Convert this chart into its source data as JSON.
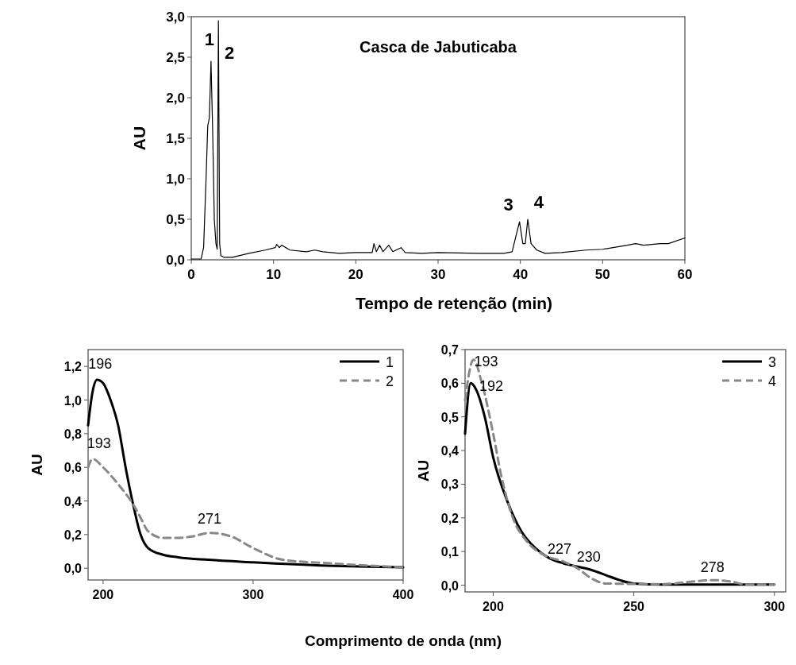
{
  "chart_data": [
    {
      "type": "line",
      "title": "Casca de Jabuticaba",
      "xlabel": "Tempo de retenção (min)",
      "ylabel": "AU",
      "xlim": [
        0,
        60
      ],
      "ylim": [
        0,
        3
      ],
      "xticks": [
        0,
        10,
        20,
        30,
        40,
        50,
        60
      ],
      "yticks": [
        {
          "value": 0,
          "label": "0,0"
        },
        {
          "value": 0.5,
          "label": "0,5"
        },
        {
          "value": 1,
          "label": "1,0"
        },
        {
          "value": 1.5,
          "label": "1,5"
        },
        {
          "value": 2,
          "label": "2,0"
        },
        {
          "value": 2.5,
          "label": "2,5"
        },
        {
          "value": 3,
          "label": "3,0"
        }
      ],
      "series": [
        {
          "color": "#000000",
          "x": [
            0,
            1.2,
            1.5,
            1.8,
            2.0,
            2.2,
            2.4,
            2.6,
            2.8,
            3.0,
            3.15,
            3.3,
            3.45,
            3.6,
            4,
            5,
            7,
            9,
            10.2,
            10.4,
            10.7,
            11,
            12,
            14,
            15,
            16,
            18,
            20,
            22,
            22.2,
            22.5,
            22.9,
            23.3,
            24,
            24.5,
            25.5,
            26,
            28,
            30,
            35,
            38,
            39,
            39.6,
            39.9,
            40.3,
            40.6,
            40.9,
            41.3,
            42,
            43,
            45,
            48,
            50,
            53,
            54,
            55,
            57,
            58,
            60
          ],
          "values": [
            0.01,
            0.01,
            0.15,
            1.0,
            1.65,
            1.75,
            2.45,
            1.6,
            0.5,
            0.2,
            0.13,
            2.95,
            0.2,
            0.05,
            0.03,
            0.03,
            0.08,
            0.12,
            0.15,
            0.19,
            0.15,
            0.18,
            0.12,
            0.1,
            0.12,
            0.1,
            0.08,
            0.09,
            0.09,
            0.2,
            0.1,
            0.18,
            0.1,
            0.18,
            0.1,
            0.15,
            0.09,
            0.08,
            0.09,
            0.08,
            0.08,
            0.1,
            0.35,
            0.47,
            0.2,
            0.2,
            0.5,
            0.2,
            0.12,
            0.08,
            0.09,
            0.12,
            0.13,
            0.18,
            0.2,
            0.18,
            0.2,
            0.2,
            0.27
          ]
        }
      ],
      "annotations": [
        {
          "text": "1",
          "x": 2.4,
          "y": 2.45
        },
        {
          "text": "2",
          "x": 3.3,
          "y": 2.95
        },
        {
          "text": "3",
          "x": 39.9,
          "y": 0.47
        },
        {
          "text": "4",
          "x": 40.9,
          "y": 0.5
        }
      ],
      "grid": false,
      "legend": false,
      "line_style": "solid",
      "marker": "none"
    },
    {
      "type": "line",
      "xlabel": "Comprimento de onda (nm)",
      "ylabel": "AU",
      "xlim": [
        190,
        400
      ],
      "ylim": [
        -0.07,
        1.3
      ],
      "xticks": [
        200,
        300,
        400
      ],
      "yticks": [
        {
          "value": 0,
          "label": "0,0"
        },
        {
          "value": 0.2,
          "label": "0,2"
        },
        {
          "value": 0.4,
          "label": "0,4"
        },
        {
          "value": 0.6,
          "label": "0,6"
        },
        {
          "value": 0.8,
          "label": "0,8"
        },
        {
          "value": 1,
          "label": "1,0"
        },
        {
          "value": 1.2,
          "label": "1,2"
        }
      ],
      "series": [
        {
          "name": "1",
          "color": "#000000",
          "line_style": "solid",
          "x": [
            190,
            193,
            196,
            200,
            205,
            210,
            215,
            220,
            225,
            230,
            240,
            250,
            270,
            300,
            350,
            400
          ],
          "values": [
            0.85,
            1.05,
            1.12,
            1.1,
            1.0,
            0.85,
            0.6,
            0.38,
            0.2,
            0.12,
            0.08,
            0.065,
            0.05,
            0.035,
            0.015,
            0.005
          ]
        },
        {
          "name": "2",
          "color": "#888888",
          "line_style": "dashed",
          "x": [
            190,
            193,
            200,
            210,
            220,
            225,
            230,
            240,
            250,
            260,
            271,
            285,
            300,
            320,
            350,
            400
          ],
          "values": [
            0.6,
            0.65,
            0.6,
            0.5,
            0.38,
            0.3,
            0.22,
            0.18,
            0.18,
            0.19,
            0.21,
            0.19,
            0.12,
            0.05,
            0.03,
            0.005
          ]
        }
      ],
      "annotations": [
        {
          "text": "196",
          "x": 196,
          "y": 1.12
        },
        {
          "text": "193",
          "x": 193,
          "y": 0.65
        },
        {
          "text": "271",
          "x": 271,
          "y": 0.21
        }
      ],
      "grid": false,
      "legend": "top right",
      "marker": "none"
    },
    {
      "type": "line",
      "ylabel": "AU",
      "xlim": [
        190,
        304
      ],
      "ylim": [
        -0.02,
        0.7
      ],
      "xticks": [
        200,
        250,
        300
      ],
      "yticks": [
        {
          "value": 0,
          "label": "0,0"
        },
        {
          "value": 0.1,
          "label": "0,1"
        },
        {
          "value": 0.2,
          "label": "0,2"
        },
        {
          "value": 0.3,
          "label": "0,3"
        },
        {
          "value": 0.4,
          "label": "0,4"
        },
        {
          "value": 0.5,
          "label": "0,5"
        },
        {
          "value": 0.6,
          "label": "0,6"
        },
        {
          "value": 0.7,
          "label": "0,7"
        }
      ],
      "series": [
        {
          "name": "3",
          "color": "#000000",
          "line_style": "solid",
          "x": [
            190,
            192,
            194,
            197,
            200,
            205,
            210,
            215,
            220,
            225,
            230,
            235,
            240,
            245,
            250,
            260,
            300
          ],
          "values": [
            0.45,
            0.6,
            0.58,
            0.5,
            0.38,
            0.25,
            0.16,
            0.11,
            0.08,
            0.065,
            0.055,
            0.045,
            0.03,
            0.015,
            0.005,
            0.002,
            0.002
          ]
        },
        {
          "name": "4",
          "color": "#888888",
          "line_style": "dashed",
          "x": [
            190,
            193,
            196,
            200,
            203,
            207,
            212,
            218,
            225,
            230,
            235,
            240,
            260,
            270,
            278,
            285,
            290,
            300
          ],
          "values": [
            0.55,
            0.67,
            0.6,
            0.45,
            0.32,
            0.2,
            0.13,
            0.09,
            0.07,
            0.05,
            0.02,
            0.005,
            0.003,
            0.01,
            0.015,
            0.01,
            0.002,
            0.002
          ]
        }
      ],
      "annotations": [
        {
          "text": "193",
          "x": 193,
          "y": 0.67
        },
        {
          "text": "192",
          "x": 192,
          "y": 0.6
        },
        {
          "text": "227",
          "x": 227,
          "y": 0.065
        },
        {
          "text": "230",
          "x": 230,
          "y": 0.055
        },
        {
          "text": "278",
          "x": 278,
          "y": 0.015
        }
      ],
      "grid": false,
      "legend": "top right",
      "marker": "none"
    }
  ]
}
